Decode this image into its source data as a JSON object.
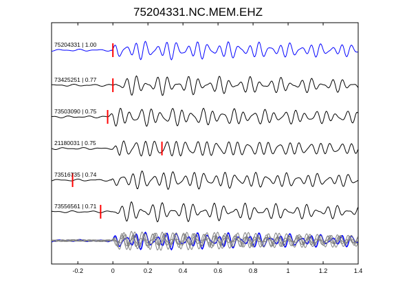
{
  "chart_data": {
    "type": "line",
    "title": "75204331.NC.MEM.EHZ",
    "xlabel": "",
    "ylabel": "",
    "xlim": [
      -0.35,
      1.4
    ],
    "x_ticks": [
      -0.2,
      0,
      0.2,
      0.4,
      0.6,
      0.8,
      1,
      1.2,
      1.4
    ],
    "x_tick_labels": [
      "-0.2",
      "0",
      "0.2",
      "0.4",
      "0.6",
      "0.8",
      "1",
      "1.2",
      "1.4"
    ],
    "grid": false,
    "series": [
      {
        "name": "75204331 | 1.00",
        "color": "#0000ff",
        "pick_x": 0.0,
        "corr": 1.0
      },
      {
        "name": "73425251 | 0.77",
        "color": "#000000",
        "pick_x": 0.0,
        "corr": 0.77
      },
      {
        "name": "73503090 | 0.75",
        "color": "#000000",
        "pick_x": -0.03,
        "corr": 0.75
      },
      {
        "name": "21180031 | 0.75",
        "color": "#000000",
        "pick_x": 0.28,
        "corr": 0.75
      },
      {
        "name": "73516735 | 0.74",
        "color": "#000000",
        "pick_x": -0.23,
        "corr": 0.74
      },
      {
        "name": "73556561 | 0.71",
        "color": "#000000",
        "pick_x": -0.07,
        "corr": 0.71
      }
    ],
    "stack": {
      "name": "overlay",
      "colors": [
        "#808080",
        "#0000ff"
      ]
    },
    "pick_color": "#ff0000"
  }
}
